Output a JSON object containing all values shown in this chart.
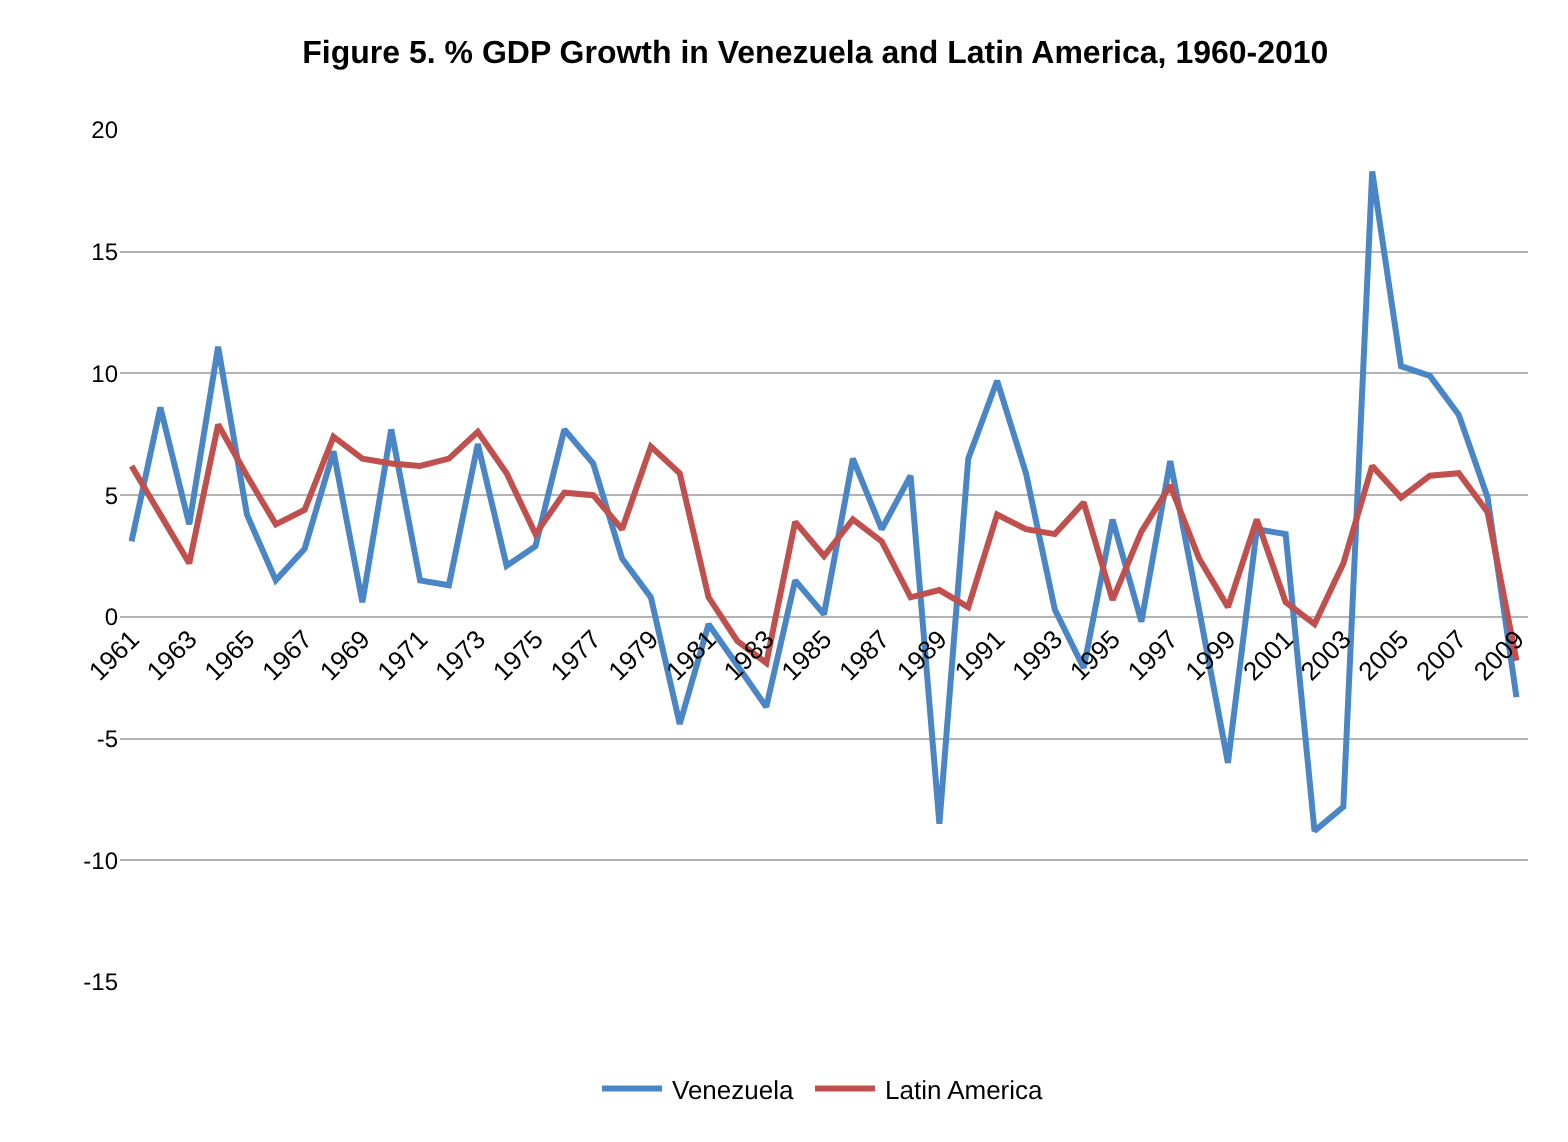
{
  "chart_data": {
    "type": "line",
    "title": "Figure 5. % GDP Growth in Venezuela and Latin America, 1960-2010",
    "categories": [
      "1961",
      null,
      "1963",
      null,
      "1965",
      null,
      "1967",
      null,
      "1969",
      null,
      "1971",
      null,
      "1973",
      null,
      "1975",
      null,
      "1977",
      null,
      "1979",
      null,
      "1981",
      null,
      "1983",
      null,
      "1985",
      null,
      "1987",
      null,
      "1989",
      null,
      "1991",
      null,
      "1993",
      null,
      "1995",
      null,
      "1997",
      null,
      "1999",
      null,
      "2001",
      null,
      "2003",
      null,
      "2005",
      null,
      "2007",
      null,
      "2009"
    ],
    "series": [
      {
        "name": "Venezuela",
        "color": "#4a86c5",
        "values": [
          3.1,
          8.6,
          3.8,
          11.1,
          4.2,
          1.5,
          2.8,
          6.8,
          0.6,
          7.7,
          1.5,
          1.3,
          7.1,
          2.1,
          2.9,
          7.7,
          6.3,
          2.4,
          0.8,
          -4.4,
          -0.3,
          -2.0,
          -3.7,
          1.5,
          0.1,
          6.5,
          3.6,
          5.8,
          -8.5,
          6.5,
          9.7,
          5.9,
          0.3,
          -2.1,
          4.0,
          -0.2,
          6.4,
          0.3,
          -6.0,
          3.6,
          3.4,
          -8.8,
          -7.8,
          18.3,
          10.3,
          9.9,
          8.3,
          4.9,
          -3.3
        ]
      },
      {
        "name": "Latin America",
        "color": "#c0504d",
        "values": [
          6.2,
          4.2,
          2.2,
          7.9,
          5.8,
          3.8,
          4.4,
          7.4,
          6.5,
          6.3,
          6.2,
          6.5,
          7.6,
          5.9,
          3.4,
          5.1,
          5.0,
          3.6,
          7.0,
          5.9,
          0.8,
          -1.0,
          -1.9,
          3.9,
          2.5,
          4.0,
          3.1,
          0.8,
          1.1,
          0.4,
          4.2,
          3.6,
          3.4,
          4.7,
          0.7,
          3.5,
          5.4,
          2.4,
          0.4,
          4.0,
          0.6,
          -0.3,
          2.2,
          6.2,
          4.9,
          5.8,
          5.9,
          4.3,
          -1.8
        ]
      }
    ],
    "ylim": [
      -15,
      20
    ],
    "yticks": [
      -15,
      -10,
      -5,
      0,
      5,
      10,
      15,
      20
    ],
    "grid": "y",
    "legend": "bottom",
    "marker": "none",
    "line_style": "solid"
  }
}
